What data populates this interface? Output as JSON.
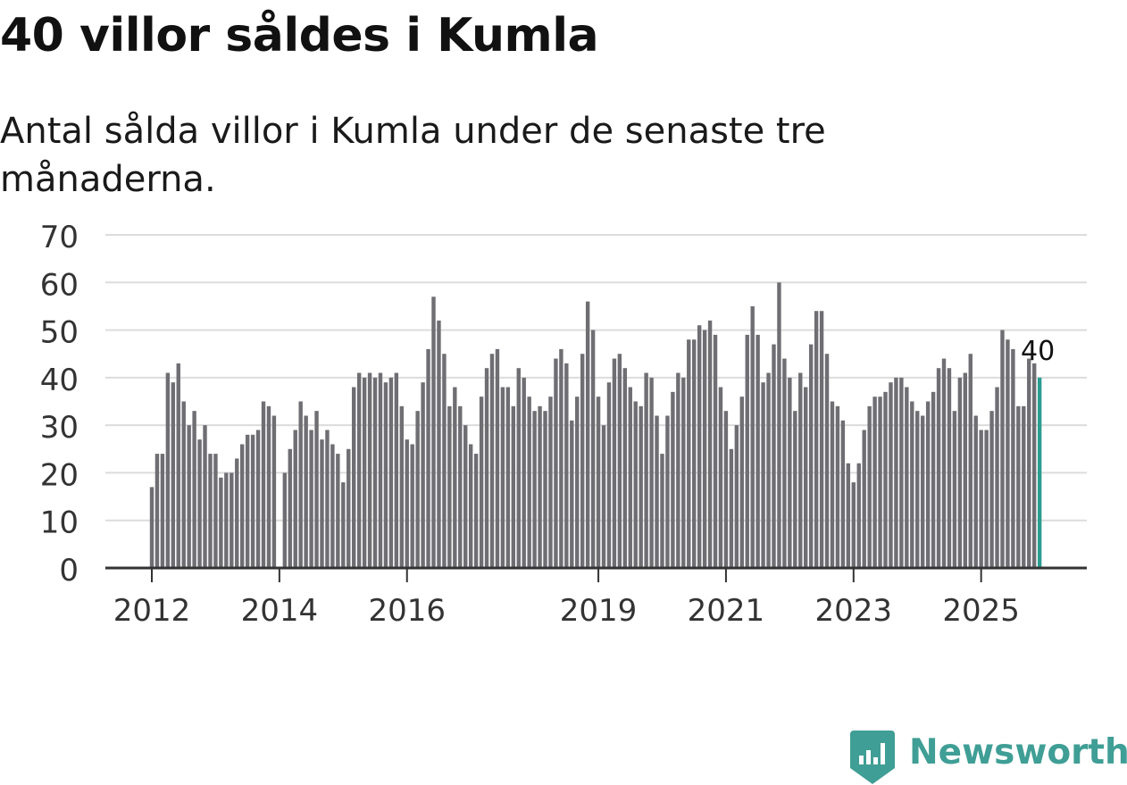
{
  "title": "40 villor såldes i Kumla",
  "subtitle": "Antal sålda villor i Kumla under de senaste tre månaderna.",
  "brand": {
    "name": "Newsworthy",
    "icon": "newsworthy-chart-icon",
    "color": "#3f9e95"
  },
  "chart_data": {
    "type": "bar",
    "title": "40 villor såldes i Kumla",
    "subtitle": "Antal sålda villor i Kumla under de senaste tre månaderna.",
    "xlabel": "",
    "ylabel": "",
    "ylim": [
      0,
      70
    ],
    "yticks": [
      0,
      10,
      20,
      30,
      40,
      50,
      60,
      70
    ],
    "xticks": [
      {
        "label": "2012",
        "index": 0
      },
      {
        "label": "2014",
        "index": 24
      },
      {
        "label": "2016",
        "index": 48
      },
      {
        "label": "2019",
        "index": 84
      },
      {
        "label": "2021",
        "index": 108
      },
      {
        "label": "2023",
        "index": 132
      },
      {
        "label": "2025",
        "index": 156
      }
    ],
    "grid": true,
    "bar_color": "#6e6e73",
    "highlight_color": "#2a9d8f",
    "highlight_label": "40",
    "start_month": "2012-01",
    "values": [
      17,
      24,
      24,
      41,
      39,
      43,
      35,
      30,
      33,
      27,
      30,
      24,
      24,
      19,
      20,
      20,
      23,
      26,
      28,
      28,
      29,
      35,
      34,
      32,
      0,
      20,
      25,
      29,
      35,
      32,
      29,
      33,
      27,
      29,
      26,
      24,
      18,
      25,
      38,
      41,
      40,
      41,
      40,
      41,
      39,
      40,
      41,
      34,
      27,
      26,
      33,
      39,
      46,
      57,
      52,
      45,
      34,
      38,
      34,
      30,
      26,
      24,
      36,
      42,
      45,
      46,
      38,
      38,
      34,
      42,
      40,
      36,
      33,
      34,
      33,
      36,
      44,
      46,
      43,
      31,
      36,
      45,
      56,
      50,
      36,
      30,
      39,
      44,
      45,
      42,
      38,
      35,
      34,
      41,
      40,
      32,
      24,
      32,
      37,
      41,
      40,
      48,
      48,
      51,
      50,
      52,
      49,
      38,
      33,
      25,
      30,
      36,
      49,
      55,
      49,
      39,
      41,
      47,
      60,
      44,
      40,
      33,
      41,
      38,
      47,
      54,
      54,
      45,
      35,
      34,
      31,
      22,
      18,
      22,
      29,
      34,
      36,
      36,
      37,
      39,
      40,
      40,
      38,
      35,
      33,
      32,
      35,
      37,
      42,
      44,
      42,
      33,
      40,
      41,
      45,
      32,
      29,
      29,
      33,
      38,
      50,
      48,
      46,
      34,
      34,
      44,
      43,
      40
    ]
  }
}
